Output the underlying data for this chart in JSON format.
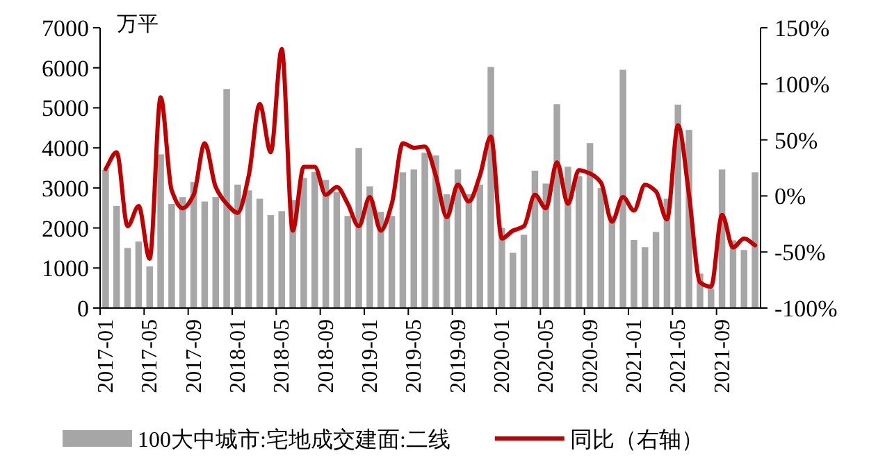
{
  "chart_data": {
    "type": "bar",
    "ylabel": "万平",
    "categories": [
      "2017-01",
      null,
      null,
      null,
      "2017-05",
      null,
      null,
      null,
      "2017-09",
      null,
      null,
      null,
      "2018-01",
      null,
      null,
      null,
      "2018-05",
      null,
      null,
      null,
      "2018-09",
      null,
      null,
      null,
      "2019-01",
      null,
      null,
      null,
      "2019-05",
      null,
      null,
      null,
      "2019-09",
      null,
      null,
      null,
      "2020-01",
      null,
      null,
      null,
      "2020-05",
      null,
      null,
      null,
      "2020-09",
      null,
      null,
      null,
      "2021-01",
      null,
      null,
      null,
      "2021-05",
      null,
      null,
      null,
      "2021-09",
      null,
      null,
      null
    ],
    "series": [
      {
        "name": "100大中城市:宅地成交建面:二线",
        "color": "#a6a6a6",
        "values": [
          3450,
          2550,
          1500,
          1660,
          1040,
          3840,
          2600,
          2770,
          3150,
          2660,
          2770,
          5470,
          3080,
          2940,
          2730,
          2320,
          2420,
          2700,
          3250,
          3400,
          3200,
          2900,
          2300,
          4000,
          3040,
          2400,
          2300,
          3390,
          3460,
          3880,
          3810,
          2840,
          3460,
          2840,
          3080,
          6020,
          2000,
          1380,
          1830,
          3430,
          3110,
          5090,
          3530,
          3290,
          4120,
          3000,
          2300,
          5950,
          1700,
          1520,
          1900,
          2730,
          5080,
          4450,
          860,
          480,
          3460,
          1690,
          1450,
          3390
        ]
      },
      {
        "name": "同比（右轴）",
        "type": "line",
        "axis": "y2",
        "color": "#c00000",
        "values": [
          24,
          39,
          -27,
          -9,
          -56,
          88,
          5,
          -11,
          1,
          47,
          8,
          -7,
          -15,
          18,
          82,
          39,
          131,
          -31,
          26,
          26,
          1,
          8,
          -7,
          -27,
          -1,
          -31,
          -7,
          47,
          43,
          44,
          18,
          -19,
          10,
          -5,
          18,
          53,
          -38,
          -31,
          -27,
          1,
          -11,
          30,
          -7,
          23,
          20,
          12,
          -23,
          -1,
          -13,
          10,
          4,
          -21,
          63,
          1,
          -77,
          -81,
          -17,
          -46,
          -38,
          -44
        ]
      }
    ],
    "ylim": [
      0,
      7000
    ],
    "yticks": [
      0,
      1000,
      2000,
      3000,
      4000,
      5000,
      6000,
      7000
    ],
    "y2lim": [
      -100,
      150
    ],
    "y2ticks": [
      {
        "value": -100,
        "label": "-100%"
      },
      {
        "value": -50,
        "label": "-50%"
      },
      {
        "value": 0,
        "label": "0%"
      },
      {
        "value": 50,
        "label": "50%"
      },
      {
        "value": 100,
        "label": "100%"
      },
      {
        "value": 150,
        "label": "150%"
      }
    ],
    "legend": "bottom",
    "grid": false
  }
}
